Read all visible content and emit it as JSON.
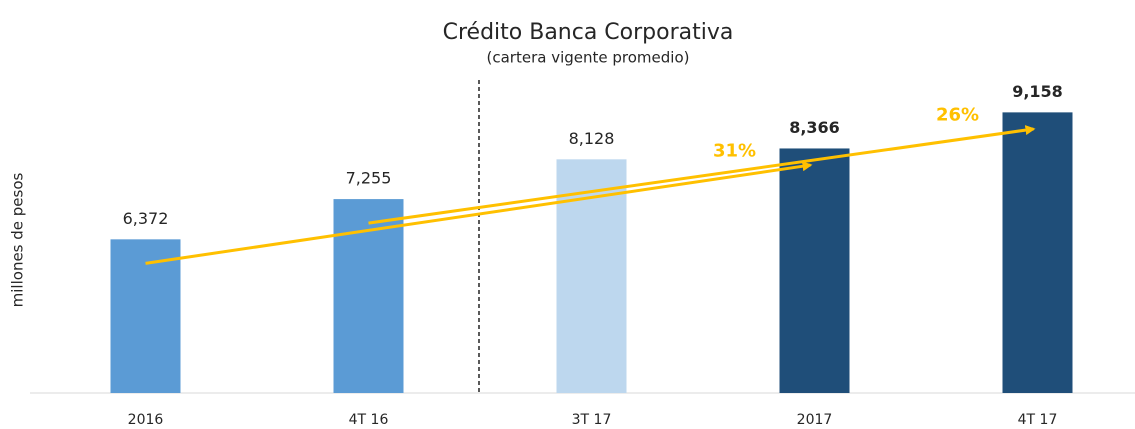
{
  "chart_data": {
    "type": "bar",
    "title": "Crédito Banca Corporativa",
    "subtitle": "(cartera vigente promedio)",
    "y_label": "millones de pesos",
    "categories": [
      "2016",
      "4T 16",
      "3T 17",
      "2017",
      "4T 17"
    ],
    "values": [
      6372,
      7255,
      8128,
      8366,
      9158
    ],
    "value_labels": [
      "6,372",
      "7,255",
      "8,128",
      "8,366",
      "9,158"
    ],
    "value_label_bold": [
      false,
      false,
      false,
      true,
      true
    ],
    "colors": [
      "#5b9bd5",
      "#5b9bd5",
      "#bdd7ee",
      "#1f4e79",
      "#1f4e79"
    ],
    "ylim": [
      3000,
      10000
    ],
    "annotations": [
      {
        "text": "31%",
        "color": "#ffc000"
      },
      {
        "text": "26%",
        "color": "#ffc000"
      }
    ]
  }
}
